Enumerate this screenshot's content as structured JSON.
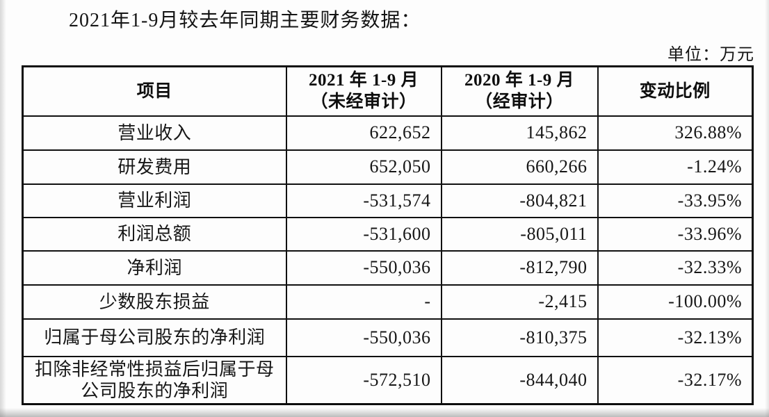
{
  "page": {
    "title": "2021年1-9月较去年同期主要财务数据：",
    "unit_label": "单位：万元"
  },
  "table": {
    "columns": [
      {
        "label": "项目"
      },
      {
        "line1": "2021 年 1-9 月",
        "line2": "（未经审计）"
      },
      {
        "line1": "2020 年 1-9 月",
        "line2": "（经审计）"
      },
      {
        "label": "变动比例"
      }
    ],
    "rows": [
      {
        "item": "营业收入",
        "v2021": "622,652",
        "v2020": "145,862",
        "change": "326.88%"
      },
      {
        "item": "研发费用",
        "v2021": "652,050",
        "v2020": "660,266",
        "change": "-1.24%"
      },
      {
        "item": "营业利润",
        "v2021": "-531,574",
        "v2020": "-804,821",
        "change": "-33.95%"
      },
      {
        "item": "利润总额",
        "v2021": "-531,600",
        "v2020": "-805,011",
        "change": "-33.96%"
      },
      {
        "item": "净利润",
        "v2021": "-550,036",
        "v2020": "-812,790",
        "change": "-32.33%"
      },
      {
        "item": "少数股东损益",
        "v2021": "-",
        "v2020": "-2,415",
        "change": "-100.00%"
      },
      {
        "item": "归属于母公司股东的净利润",
        "v2021": "-550,036",
        "v2020": "-810,375",
        "change": "-32.13%"
      },
      {
        "item": "扣除非经常性损益后归属于母公司股东的净利润",
        "v2021": "-572,510",
        "v2020": "-844,040",
        "change": "-32.17%"
      }
    ]
  }
}
